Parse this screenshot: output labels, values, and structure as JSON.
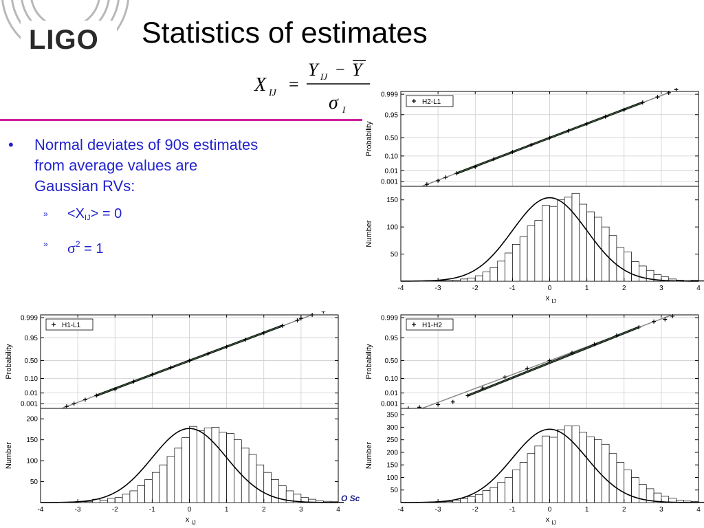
{
  "slide": {
    "logo_text": "LIGO",
    "title": "Statistics of estimates",
    "footer_fragment": "O Sc",
    "colors": {
      "accent_rule": "#cc2299",
      "bullet_text": "#2222cc"
    }
  },
  "formula": {
    "lhs": "X",
    "lhs_sub": "IJ",
    "equals": "=",
    "num_Y": "Y",
    "num_Y_sub": "IJ",
    "minus": "−",
    "num_Ybar": "Y",
    "den": "σ",
    "den_sub": "I"
  },
  "bullets": {
    "main_marker": "•",
    "main_text": [
      "Normal deviates of 90s estimates",
      "from average values are",
      "Gaussian RVs:"
    ],
    "sub_marker": "»",
    "sub1_pre": "<X",
    "sub1_sub": "IJ",
    "sub1_post": "> = 0",
    "sub2_sigma": "σ",
    "sub2_sup": "2",
    "sub2_post": " = 1"
  },
  "chart_data": [
    {
      "type": "scatter",
      "subtype": "normal-probability-plot",
      "legend": "H2-L1",
      "legend_position": "top-left",
      "marker": "+",
      "ylabel": "Probability",
      "yticks": [
        "0.999",
        "0.95",
        "0.50",
        "0.10",
        "0.01",
        "0.001"
      ],
      "xlim": [
        -4,
        4
      ],
      "grid": true,
      "points": [
        [
          -3.3,
          0.0005
        ],
        [
          -3.0,
          0.0012
        ],
        [
          -2.8,
          0.0025
        ],
        [
          -2.5,
          0.006
        ],
        [
          -2.0,
          0.02
        ],
        [
          -1.5,
          0.067
        ],
        [
          -1.0,
          0.16
        ],
        [
          -0.5,
          0.31
        ],
        [
          0.0,
          0.5
        ],
        [
          0.5,
          0.69
        ],
        [
          1.0,
          0.84
        ],
        [
          1.5,
          0.933
        ],
        [
          2.0,
          0.977
        ],
        [
          2.5,
          0.994
        ],
        [
          2.9,
          0.9981
        ],
        [
          3.2,
          0.9993
        ],
        [
          3.4,
          0.9997
        ]
      ]
    },
    {
      "type": "bar",
      "subtype": "histogram",
      "ylabel": "Number",
      "xlabel": "x",
      "xlabel_sub": "IJ",
      "xlim": [
        -4,
        4
      ],
      "ylim": [
        0,
        175
      ],
      "yticks": [
        50,
        100,
        150
      ],
      "xticks": [
        -4,
        -3,
        -2,
        -1,
        0,
        1,
        2,
        3,
        4
      ],
      "bin_width": 0.2,
      "bin_start": -3.4,
      "values": [
        1,
        1,
        1,
        1,
        2,
        4,
        6,
        10,
        17,
        25,
        37,
        52,
        68,
        82,
        102,
        112,
        140,
        138,
        150,
        155,
        162,
        142,
        128,
        118,
        100,
        84,
        62,
        54,
        36,
        28,
        20,
        12,
        8,
        4,
        2,
        1,
        2,
        1,
        1,
        1
      ],
      "fit_peak": 154
    },
    {
      "type": "scatter",
      "subtype": "normal-probability-plot",
      "legend": "H1-L1",
      "legend_position": "top-left",
      "marker": "+",
      "ylabel": "Probability",
      "yticks": [
        "0.999",
        "0.95",
        "0.50",
        "0.10",
        "0.01",
        "0.001"
      ],
      "xlim": [
        -4,
        4
      ],
      "grid": true,
      "points": [
        [
          -3.3,
          0.0005
        ],
        [
          -3.1,
          0.001
        ],
        [
          -2.8,
          0.0025
        ],
        [
          -2.5,
          0.006
        ],
        [
          -2.0,
          0.02
        ],
        [
          -1.5,
          0.067
        ],
        [
          -1.0,
          0.16
        ],
        [
          -0.5,
          0.31
        ],
        [
          0.0,
          0.5
        ],
        [
          0.5,
          0.69
        ],
        [
          1.0,
          0.84
        ],
        [
          1.5,
          0.933
        ],
        [
          2.0,
          0.977
        ],
        [
          2.5,
          0.994
        ],
        [
          2.9,
          0.9981
        ],
        [
          3.0,
          0.9988
        ],
        [
          3.3,
          0.9995
        ],
        [
          3.6,
          0.9998
        ]
      ]
    },
    {
      "type": "bar",
      "subtype": "histogram",
      "ylabel": "Number",
      "xlabel": "x",
      "xlabel_sub": "IJ",
      "xlim": [
        -4,
        4
      ],
      "ylim": [
        0,
        225
      ],
      "yticks": [
        50,
        100,
        150,
        200
      ],
      "xticks": [
        -4,
        -3,
        -2,
        -1,
        0,
        1,
        2,
        3,
        4
      ],
      "bin_width": 0.2,
      "bin_start": -3.4,
      "values": [
        1,
        1,
        2,
        2,
        8,
        6,
        10,
        12,
        20,
        28,
        40,
        55,
        72,
        90,
        110,
        130,
        155,
        182,
        172,
        178,
        180,
        168,
        165,
        150,
        130,
        115,
        90,
        72,
        55,
        40,
        28,
        20,
        12,
        8,
        4,
        3,
        2,
        1,
        1,
        1
      ],
      "fit_peak": 177
    },
    {
      "type": "scatter",
      "subtype": "normal-probability-plot",
      "legend": "H1-H2",
      "legend_position": "top-left",
      "marker": "+",
      "ylabel": "Probability",
      "yticks": [
        "0.999",
        "0.95",
        "0.50",
        "0.10",
        "0.01",
        "0.001"
      ],
      "xlim": [
        -4,
        4
      ],
      "grid": true,
      "points": [
        [
          -3.8,
          0.0003
        ],
        [
          -3.5,
          0.0004
        ],
        [
          -3.0,
          0.0008
        ],
        [
          -2.6,
          0.0015
        ],
        [
          -2.2,
          0.006
        ],
        [
          -1.8,
          0.025
        ],
        [
          -1.2,
          0.12
        ],
        [
          -0.6,
          0.29
        ],
        [
          0.0,
          0.5
        ],
        [
          0.6,
          0.71
        ],
        [
          1.2,
          0.88
        ],
        [
          1.8,
          0.965
        ],
        [
          2.4,
          0.992
        ],
        [
          2.8,
          0.9975
        ],
        [
          3.1,
          0.9985
        ],
        [
          3.3,
          0.9993
        ]
      ]
    },
    {
      "type": "bar",
      "subtype": "histogram",
      "ylabel": "Number",
      "xlabel": "x",
      "xlabel_sub": "IJ",
      "xlim": [
        -4,
        4
      ],
      "ylim": [
        0,
        375
      ],
      "yticks": [
        50,
        100,
        150,
        200,
        250,
        300,
        350
      ],
      "xticks": [
        -4,
        -3,
        -2,
        -1,
        0,
        1,
        2,
        3,
        4
      ],
      "bin_width": 0.2,
      "bin_start": -3.4,
      "values": [
        1,
        2,
        3,
        4,
        10,
        16,
        24,
        32,
        48,
        60,
        80,
        100,
        130,
        160,
        195,
        225,
        265,
        260,
        290,
        305,
        305,
        280,
        262,
        250,
        232,
        195,
        160,
        130,
        100,
        72,
        55,
        38,
        25,
        18,
        10,
        6,
        4,
        2,
        1,
        1
      ],
      "fit_peak": 292
    }
  ]
}
